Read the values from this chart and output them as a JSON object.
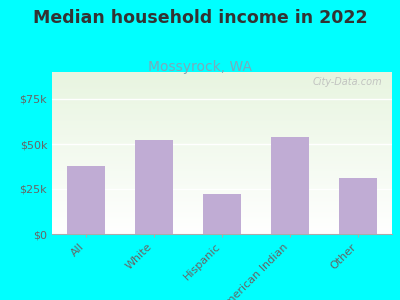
{
  "title": "Median household income in 2022",
  "subtitle": "Mossyrock, WA",
  "categories": [
    "All",
    "White",
    "Hispanic",
    "American Indian",
    "Other"
  ],
  "values": [
    38000,
    52000,
    22000,
    54000,
    31000
  ],
  "bar_color": "#c0acd4",
  "background_outer": "#00ffff",
  "title_color": "#333333",
  "subtitle_color": "#7aaabb",
  "tick_color": "#666666",
  "ylim": [
    0,
    90000
  ],
  "yticks": [
    0,
    25000,
    50000,
    75000
  ],
  "ytick_labels": [
    "$0",
    "$25k",
    "$50k",
    "$75k"
  ],
  "watermark": "City-Data.com",
  "title_fontsize": 12.5,
  "subtitle_fontsize": 10
}
